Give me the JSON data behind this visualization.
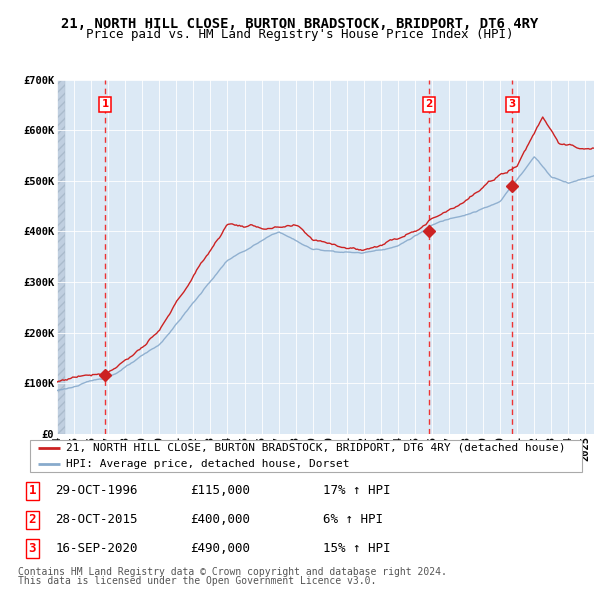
{
  "title": "21, NORTH HILL CLOSE, BURTON BRADSTOCK, BRIDPORT, DT6 4RY",
  "subtitle": "Price paid vs. HM Land Registry's House Price Index (HPI)",
  "legend_line1": "21, NORTH HILL CLOSE, BURTON BRADSTOCK, BRIDPORT, DT6 4RY (detached house)",
  "legend_line2": "HPI: Average price, detached house, Dorset",
  "footer1": "Contains HM Land Registry data © Crown copyright and database right 2024.",
  "footer2": "This data is licensed under the Open Government Licence v3.0.",
  "transactions": [
    {
      "num": 1,
      "date": "29-OCT-1996",
      "price": 115000,
      "year": 1996.83,
      "hpi_pct": "17% ↑ HPI"
    },
    {
      "num": 2,
      "date": "28-OCT-2015",
      "price": 400000,
      "year": 2015.83,
      "hpi_pct": "6% ↑ HPI"
    },
    {
      "num": 3,
      "date": "16-SEP-2020",
      "price": 490000,
      "year": 2020.71,
      "hpi_pct": "15% ↑ HPI"
    }
  ],
  "xmin": 1994.0,
  "xmax": 2025.5,
  "ymin": 0,
  "ymax": 700000,
  "yticks": [
    0,
    100000,
    200000,
    300000,
    400000,
    500000,
    600000,
    700000
  ],
  "ytick_labels": [
    "£0",
    "£100K",
    "£200K",
    "£300K",
    "£400K",
    "£500K",
    "£600K",
    "£700K"
  ],
  "background_color": "#dce9f5",
  "hatch_color": "#c0cfe0",
  "grid_color": "#ffffff",
  "line_color_red": "#cc2222",
  "line_color_blue": "#88aacc",
  "vline_color": "#ee3333",
  "marker_color": "#cc2222",
  "title_fontsize": 10,
  "subtitle_fontsize": 9,
  "tick_fontsize": 7.5,
  "legend_fontsize": 8,
  "table_fontsize": 9,
  "footer_fontsize": 7
}
